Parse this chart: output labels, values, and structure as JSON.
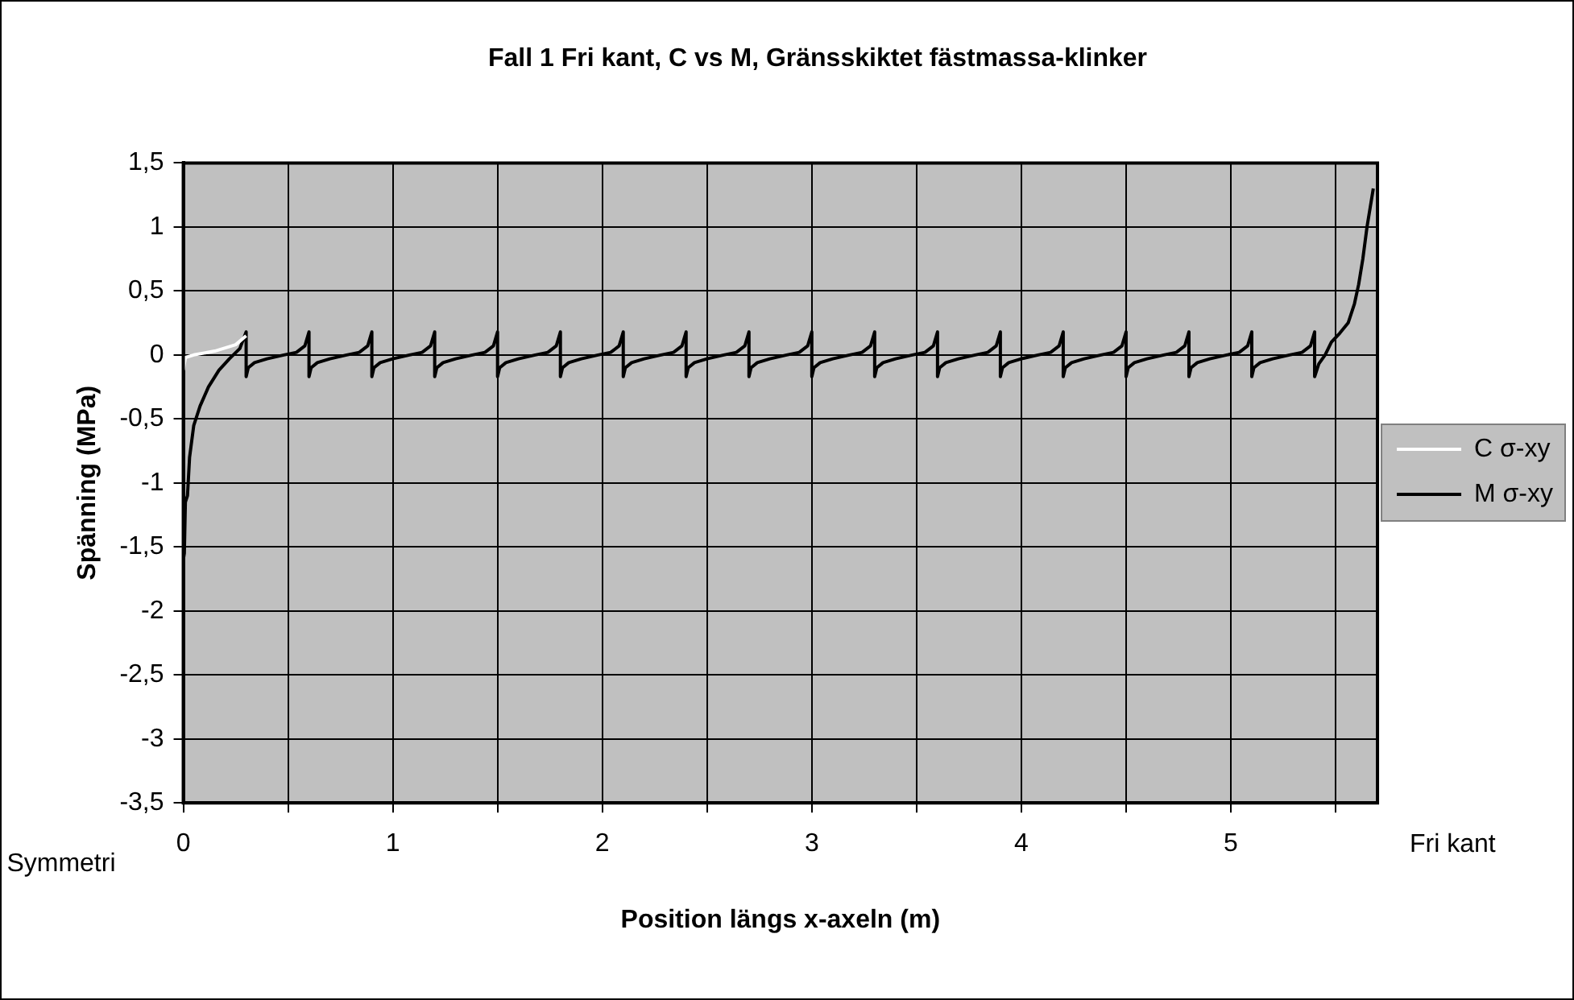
{
  "chart_data": {
    "type": "line",
    "title": "Fall 1 Fri kant, C vs M, Gränsskiktet fästmassa-klinker",
    "xlabel": "Position längs x-axeln (m)",
    "ylabel": "Spänning (MPa)",
    "annotations": [
      "Symmetri",
      "Fri kant"
    ],
    "xlim": [
      0,
      5.7
    ],
    "xticks": [
      0,
      {
        "value": 0.5,
        "label": null
      },
      1,
      {
        "value": 1.5,
        "label": null
      },
      2,
      {
        "value": 2.5,
        "label": null
      },
      3,
      {
        "value": 3.5,
        "label": null
      },
      4,
      {
        "value": 4.5,
        "label": null
      },
      5,
      {
        "value": 5.5,
        "label": null
      }
    ],
    "ylim": [
      -3.5,
      1.5
    ],
    "yticks": [
      {
        "value": -3.5,
        "label": "-3,5"
      },
      -3,
      {
        "value": -2.5,
        "label": "-2,5"
      },
      -2,
      {
        "value": -1.5,
        "label": "-1,5"
      },
      -1,
      {
        "value": -0.5,
        "label": "-0,5"
      },
      0,
      {
        "value": 0.5,
        "label": "0,5"
      },
      1,
      {
        "value": 1.5,
        "label": "1,5"
      }
    ],
    "grid": true,
    "legend": "right",
    "marker": "none",
    "series": [
      {
        "name": "C σ-xy",
        "color": "#ffffff",
        "x": [
          0,
          0.01,
          0.05,
          0.15,
          0.25,
          0.3
        ],
        "values": [
          -0.12,
          -0.02,
          0,
          0.03,
          0.08,
          0.15
        ]
      },
      {
        "name": "M σ-xy",
        "color": "#000000",
        "x": [
          0,
          0.005,
          0.01,
          0.02,
          0.03,
          0.05,
          0.08,
          0.12,
          0.17,
          0.22,
          0.27,
          0.3,
          0.3,
          0.31,
          0.34,
          0.4,
          0.48,
          0.54,
          0.58,
          0.6,
          0.6,
          0.61,
          0.64,
          0.7,
          0.78,
          0.84,
          0.88,
          0.9,
          0.9,
          0.91,
          0.94,
          1,
          1.08,
          1.14,
          1.18,
          1.2,
          1.2,
          1.21,
          1.24,
          1.3,
          1.38,
          1.44,
          1.48,
          1.5,
          1.5,
          1.51,
          1.54,
          1.6,
          1.68,
          1.74,
          1.78,
          1.8,
          1.8,
          1.81,
          1.84,
          1.9,
          1.98,
          2.04,
          2.08,
          2.1,
          2.1,
          2.11,
          2.14,
          2.2,
          2.28,
          2.34,
          2.38,
          2.4,
          2.4,
          2.41,
          2.44,
          2.5,
          2.58,
          2.64,
          2.68,
          2.7,
          2.7,
          2.71,
          2.74,
          2.8,
          2.88,
          2.94,
          2.98,
          3,
          3,
          3.01,
          3.04,
          3.1,
          3.18,
          3.24,
          3.28,
          3.3,
          3.3,
          3.31,
          3.34,
          3.4,
          3.48,
          3.54,
          3.58,
          3.6,
          3.6,
          3.61,
          3.64,
          3.7,
          3.78,
          3.84,
          3.88,
          3.9,
          3.9,
          3.91,
          3.94,
          4,
          4.08,
          4.14,
          4.18,
          4.2,
          4.2,
          4.21,
          4.24,
          4.3,
          4.38,
          4.44,
          4.48,
          4.5,
          4.5,
          4.51,
          4.54,
          4.6,
          4.68,
          4.74,
          4.78,
          4.8,
          4.8,
          4.81,
          4.84,
          4.9,
          4.98,
          5.04,
          5.08,
          5.1,
          5.1,
          5.11,
          5.14,
          5.2,
          5.28,
          5.34,
          5.38,
          5.4,
          5.4,
          5.42,
          5.45,
          5.48,
          5.52,
          5.56,
          5.59,
          5.61,
          5.63,
          5.65,
          5.67,
          5.68
        ],
        "values": [
          -1.6,
          -1.55,
          -1.15,
          -1.1,
          -0.8,
          -0.55,
          -0.4,
          -0.25,
          -0.12,
          -0.03,
          0.05,
          0.18,
          -0.17,
          -0.1,
          -0.06,
          -0.03,
          0,
          0.02,
          0.07,
          0.18,
          -0.17,
          -0.1,
          -0.06,
          -0.03,
          0,
          0.02,
          0.07,
          0.18,
          -0.17,
          -0.1,
          -0.06,
          -0.03,
          0,
          0.02,
          0.07,
          0.18,
          -0.17,
          -0.1,
          -0.06,
          -0.03,
          0,
          0.02,
          0.07,
          0.18,
          -0.17,
          -0.1,
          -0.06,
          -0.03,
          0,
          0.02,
          0.07,
          0.18,
          -0.17,
          -0.1,
          -0.06,
          -0.03,
          0,
          0.02,
          0.07,
          0.18,
          -0.17,
          -0.1,
          -0.06,
          -0.03,
          0,
          0.02,
          0.07,
          0.18,
          -0.17,
          -0.1,
          -0.06,
          -0.03,
          0,
          0.02,
          0.07,
          0.18,
          -0.17,
          -0.1,
          -0.06,
          -0.03,
          0,
          0.02,
          0.07,
          0.18,
          -0.17,
          -0.1,
          -0.06,
          -0.03,
          0,
          0.02,
          0.07,
          0.18,
          -0.17,
          -0.1,
          -0.06,
          -0.03,
          0,
          0.02,
          0.07,
          0.18,
          -0.17,
          -0.1,
          -0.06,
          -0.03,
          0,
          0.02,
          0.07,
          0.18,
          -0.17,
          -0.1,
          -0.06,
          -0.03,
          0,
          0.02,
          0.07,
          0.18,
          -0.17,
          -0.1,
          -0.06,
          -0.03,
          0,
          0.02,
          0.07,
          0.18,
          -0.17,
          -0.1,
          -0.06,
          -0.03,
          0,
          0.02,
          0.07,
          0.18,
          -0.17,
          -0.1,
          -0.06,
          -0.03,
          0,
          0.02,
          0.07,
          0.18,
          -0.17,
          -0.1,
          -0.06,
          -0.03,
          0,
          0.02,
          0.07,
          0.18,
          -0.17,
          -0.07,
          0,
          0.1,
          0.17,
          0.25,
          0.4,
          0.55,
          0.75,
          1,
          1.2,
          1.3
        ]
      }
    ]
  }
}
